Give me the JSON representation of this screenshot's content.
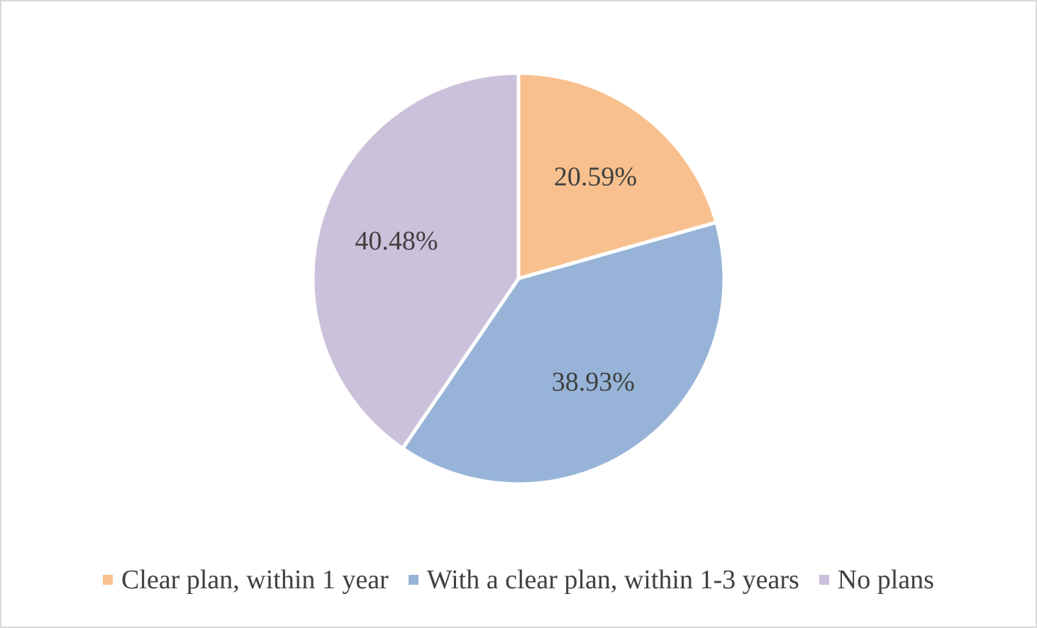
{
  "chart_data": {
    "type": "pie",
    "title": "",
    "categories": [
      "Clear plan, within 1 year",
      "With a clear plan, within 1-3 years",
      "No plans"
    ],
    "values": [
      20.59,
      38.93,
      40.48
    ],
    "value_labels": [
      "20.59%",
      "38.93%",
      "40.48%"
    ],
    "colors": [
      "#F9C08F",
      "#97B4D8",
      "#CBC1DB"
    ],
    "start_angle": "12 o'clock",
    "direction": "clockwise",
    "legend_position": "bottom"
  }
}
